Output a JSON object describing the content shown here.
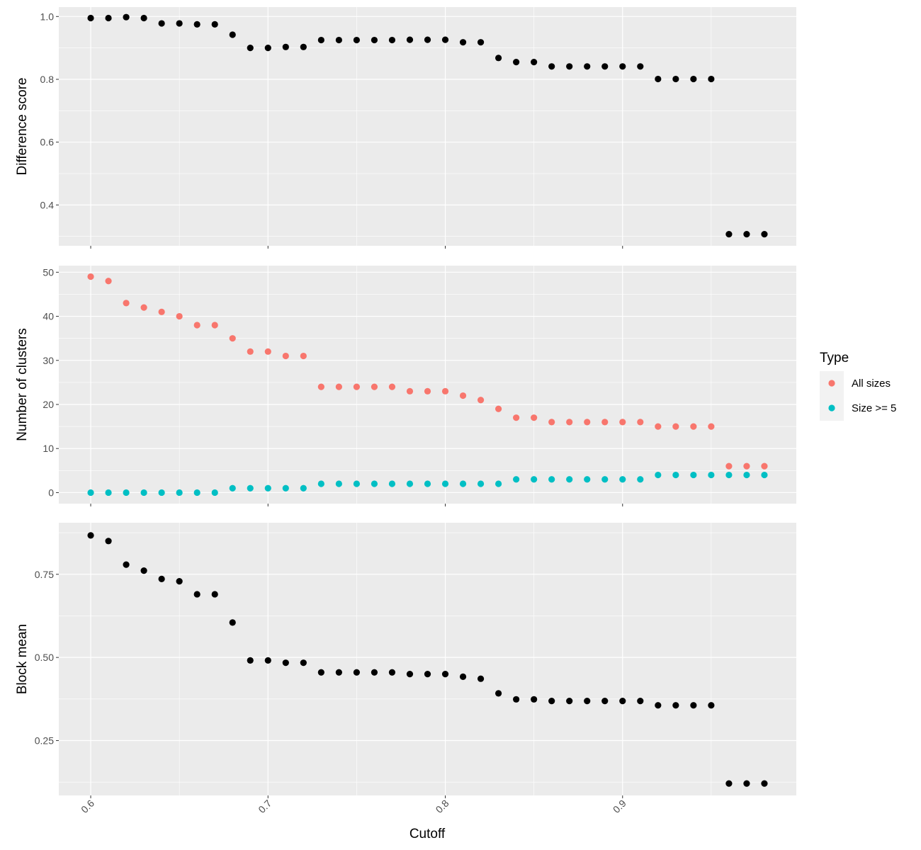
{
  "chart_data": {
    "type": "scatter",
    "shared_x": {
      "label": "Cutoff",
      "range": [
        0.582,
        0.998
      ],
      "ticks": [
        0.6,
        0.7,
        0.8,
        0.9
      ],
      "tick_labels": [
        "0.6",
        "0.7",
        "0.8",
        "0.9"
      ],
      "values": [
        0.6,
        0.61,
        0.62,
        0.63,
        0.64,
        0.65,
        0.66,
        0.67,
        0.68,
        0.69,
        0.7,
        0.71,
        0.72,
        0.73,
        0.74,
        0.75,
        0.76,
        0.77,
        0.78,
        0.79,
        0.8,
        0.81,
        0.82,
        0.83,
        0.84,
        0.85,
        0.86,
        0.87,
        0.88,
        0.89,
        0.9,
        0.91,
        0.92,
        0.93,
        0.94,
        0.95,
        0.96,
        0.97,
        0.98
      ]
    },
    "panels": [
      {
        "ylabel": "Difference score",
        "ylim": [
          0.27,
          1.03
        ],
        "yticks": [
          0.4,
          0.6,
          0.8,
          1.0
        ],
        "ytick_labels": [
          "0.4",
          "0.6",
          "0.8",
          "1.0"
        ],
        "series": [
          {
            "color": "#000000",
            "values": [
              0.995,
              0.995,
              0.998,
              0.995,
              0.978,
              0.978,
              0.975,
              0.975,
              0.942,
              0.9,
              0.9,
              0.903,
              0.903,
              0.925,
              0.925,
              0.925,
              0.925,
              0.925,
              0.926,
              0.926,
              0.926,
              0.918,
              0.918,
              0.868,
              0.855,
              0.855,
              0.841,
              0.841,
              0.841,
              0.841,
              0.841,
              0.841,
              0.801,
              0.801,
              0.801,
              0.801,
              0.307,
              0.307,
              0.307
            ]
          }
        ]
      },
      {
        "ylabel": "Number of clusters",
        "ylim": [
          -2.5,
          51.5
        ],
        "yticks": [
          0,
          10,
          20,
          30,
          40,
          50
        ],
        "ytick_labels": [
          "0",
          "10",
          "20",
          "30",
          "40",
          "50"
        ],
        "series": [
          {
            "name": "All sizes",
            "color": "#F8766D",
            "values": [
              49,
              48,
              43,
              42,
              41,
              40,
              38,
              38,
              35,
              32,
              32,
              31,
              31,
              24,
              24,
              24,
              24,
              24,
              23,
              23,
              23,
              22,
              21,
              19,
              17,
              17,
              16,
              16,
              16,
              16,
              16,
              16,
              15,
              15,
              15,
              15,
              6,
              6,
              6
            ]
          },
          {
            "name": "Size >= 5",
            "color": "#00BFC4",
            "values": [
              0,
              0,
              0,
              0,
              0,
              0,
              0,
              0,
              1,
              1,
              1,
              1,
              1,
              2,
              2,
              2,
              2,
              2,
              2,
              2,
              2,
              2,
              2,
              2,
              3,
              3,
              3,
              3,
              3,
              3,
              3,
              3,
              4,
              4,
              4,
              4,
              4,
              4,
              4
            ]
          }
        ]
      },
      {
        "ylabel": "Block mean",
        "ylim": [
          0.085,
          0.905
        ],
        "yticks": [
          0.25,
          0.5,
          0.75
        ],
        "ytick_labels": [
          "0.25",
          "0.50",
          "0.75"
        ],
        "series": [
          {
            "color": "#000000",
            "values": [
              0.867,
              0.85,
              0.779,
              0.761,
              0.736,
              0.729,
              0.69,
              0.69,
              0.605,
              0.491,
              0.491,
              0.484,
              0.484,
              0.455,
              0.455,
              0.455,
              0.455,
              0.455,
              0.45,
              0.45,
              0.45,
              0.442,
              0.436,
              0.392,
              0.374,
              0.374,
              0.369,
              0.369,
              0.369,
              0.369,
              0.369,
              0.369,
              0.356,
              0.356,
              0.356,
              0.356,
              0.121,
              0.121,
              0.121
            ]
          }
        ]
      }
    ],
    "legend": {
      "title": "Type",
      "position": "right",
      "entries": [
        {
          "label": "All sizes",
          "color": "#F8766D"
        },
        {
          "label": "Size >= 5",
          "color": "#00BFC4"
        }
      ]
    },
    "panel_background": "#EBEBEB",
    "grid": true
  }
}
